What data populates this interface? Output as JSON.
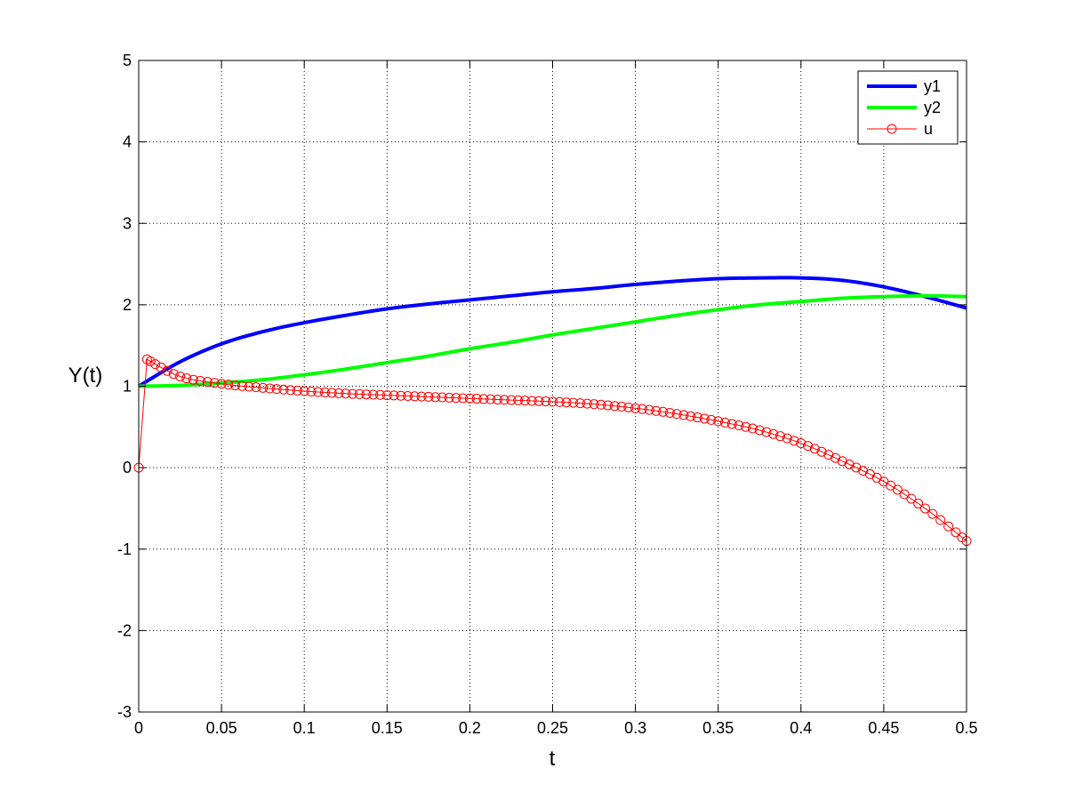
{
  "chart_data": {
    "type": "line",
    "xlabel": "t",
    "ylabel": "Y(t)",
    "xlim": [
      0,
      0.5
    ],
    "ylim": [
      -3,
      5
    ],
    "x_ticks": [
      "0",
      "0.05",
      "0.1",
      "0.15",
      "0.2",
      "0.25",
      "0.3",
      "0.35",
      "0.4",
      "0.45",
      "0.5"
    ],
    "y_ticks": [
      "-3",
      "-2",
      "-1",
      "0",
      "1",
      "2",
      "3",
      "4",
      "5"
    ],
    "grid": true,
    "legend_position": "top-right",
    "series": [
      {
        "name": "y1",
        "color": "#0000ff",
        "marker": "none",
        "x": [
          0,
          0.025,
          0.05,
          0.075,
          0.1,
          0.125,
          0.15,
          0.175,
          0.2,
          0.225,
          0.25,
          0.275,
          0.3,
          0.325,
          0.35,
          0.375,
          0.4,
          0.425,
          0.45,
          0.475,
          0.5
        ],
        "y": [
          1.0,
          1.3,
          1.52,
          1.67,
          1.78,
          1.87,
          1.95,
          2.01,
          2.06,
          2.11,
          2.16,
          2.2,
          2.25,
          2.29,
          2.32,
          2.33,
          2.33,
          2.3,
          2.22,
          2.1,
          1.96
        ]
      },
      {
        "name": "y2",
        "color": "#00ff00",
        "marker": "none",
        "x": [
          0,
          0.025,
          0.05,
          0.075,
          0.1,
          0.125,
          0.15,
          0.175,
          0.2,
          0.225,
          0.25,
          0.275,
          0.3,
          0.325,
          0.35,
          0.375,
          0.4,
          0.425,
          0.45,
          0.475,
          0.5
        ],
        "y": [
          1.0,
          1.01,
          1.04,
          1.08,
          1.14,
          1.21,
          1.29,
          1.37,
          1.46,
          1.54,
          1.63,
          1.71,
          1.79,
          1.87,
          1.94,
          2.0,
          2.04,
          2.08,
          2.1,
          2.11,
          2.1
        ]
      },
      {
        "name": "u",
        "color": "#ff0000",
        "marker": "circle",
        "x": [
          0,
          0.005,
          0.025,
          0.05,
          0.075,
          0.1,
          0.125,
          0.15,
          0.175,
          0.2,
          0.225,
          0.25,
          0.275,
          0.3,
          0.325,
          0.35,
          0.375,
          0.4,
          0.425,
          0.45,
          0.475,
          0.5
        ],
        "y": [
          0,
          1.33,
          1.12,
          1.03,
          0.98,
          0.94,
          0.91,
          0.89,
          0.87,
          0.85,
          0.83,
          0.81,
          0.78,
          0.73,
          0.66,
          0.57,
          0.46,
          0.3,
          0.08,
          -0.17,
          -0.5,
          -0.9
        ]
      }
    ]
  }
}
